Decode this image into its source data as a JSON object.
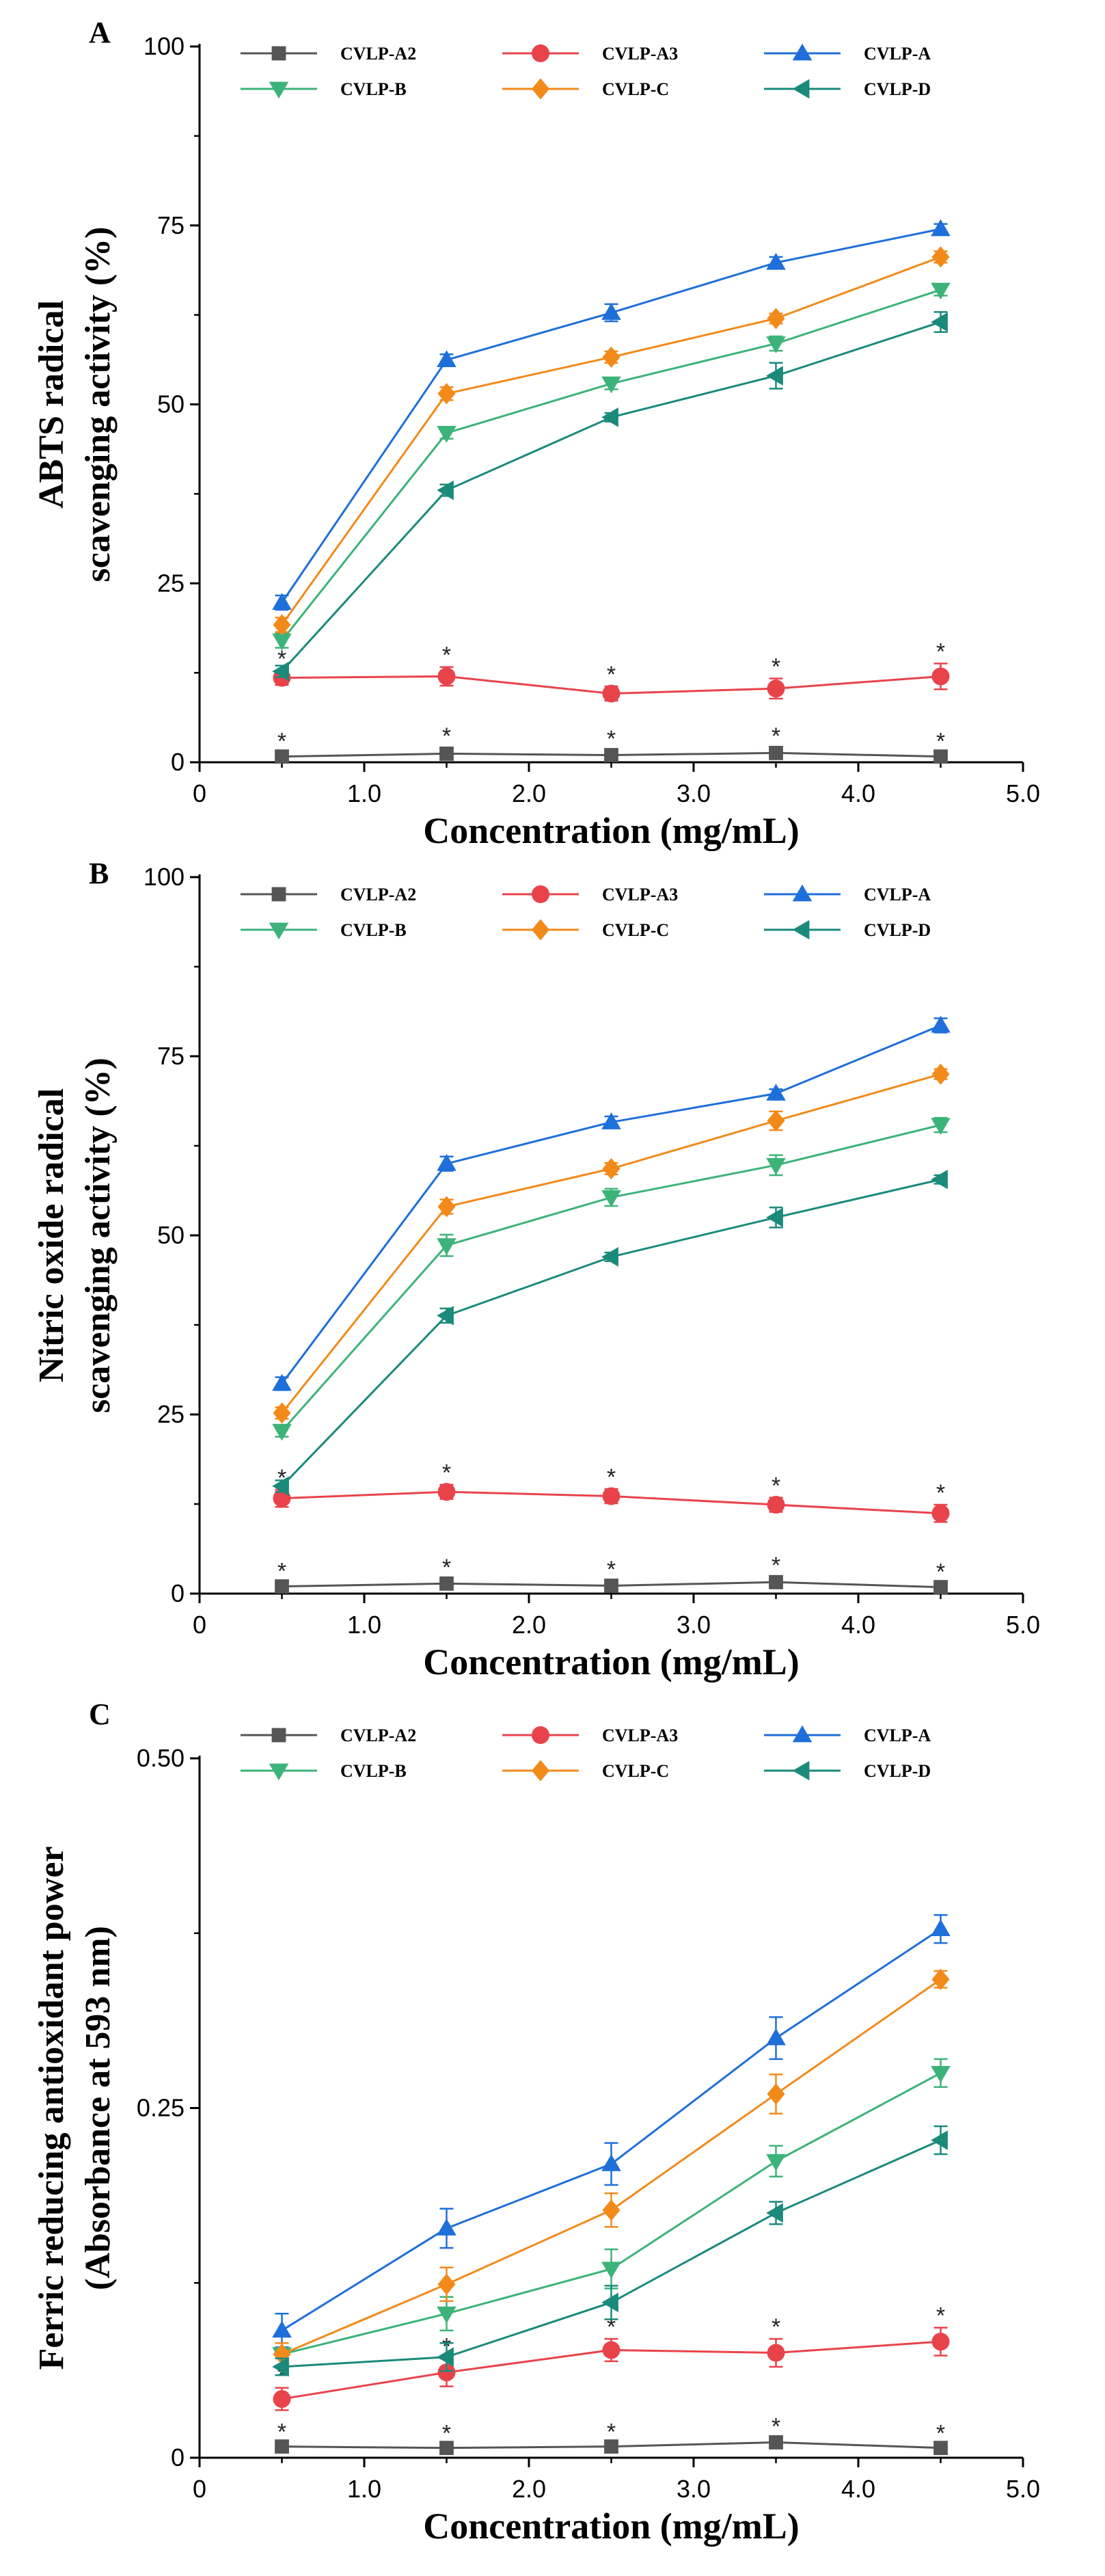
{
  "chart_data": [
    {
      "type": "line",
      "panel_label": "A",
      "title": "",
      "xlabel": "Concentration (mg/mL)",
      "ylabel_lines": [
        "ABTS radical",
        "scavenging activity (%)"
      ],
      "xlim": [
        0,
        5.0
      ],
      "ylim": [
        0,
        100
      ],
      "xticks": [
        "0",
        "1.0",
        "2.0",
        "3.0",
        "4.0",
        "5.0"
      ],
      "xtick_values": [
        0,
        1,
        2,
        3,
        4,
        5
      ],
      "yticks": [
        "0",
        "25",
        "50",
        "75",
        "100"
      ],
      "ytick_values": [
        0,
        25,
        50,
        75,
        100
      ],
      "legend_position": "top",
      "x": [
        0.5,
        1.5,
        2.5,
        3.5,
        4.5
      ],
      "series": [
        {
          "name": "CVLP-A2",
          "color": "#555555",
          "marker": "square",
          "values": [
            0.8,
            1.2,
            1.0,
            1.3,
            0.8
          ],
          "errors": [
            0.5,
            0.8,
            0.6,
            0.7,
            0.5
          ],
          "stars": [
            true,
            true,
            true,
            true,
            true
          ]
        },
        {
          "name": "CVLP-A3",
          "color": "#e8434b",
          "marker": "circle",
          "values": [
            11.8,
            12.0,
            9.6,
            10.3,
            12.0
          ],
          "errors": [
            1.0,
            1.3,
            1.0,
            1.4,
            1.8
          ],
          "stars": [
            true,
            true,
            true,
            true,
            true
          ]
        },
        {
          "name": "CVLP-A",
          "color": "#1e6fd9",
          "marker": "triangle-up",
          "values": [
            22.3,
            56.2,
            62.8,
            69.8,
            74.5
          ],
          "errors": [
            1.0,
            0.8,
            1.2,
            0.8,
            0.7
          ],
          "stars": [
            false,
            false,
            false,
            false,
            false
          ]
        },
        {
          "name": "CVLP-B",
          "color": "#3cb379",
          "marker": "triangle-down",
          "values": [
            17.0,
            46.0,
            52.9,
            58.5,
            66.0
          ],
          "errors": [
            1.0,
            0.8,
            0.8,
            1.0,
            0.8
          ],
          "stars": [
            false,
            false,
            false,
            false,
            false
          ]
        },
        {
          "name": "CVLP-C",
          "color": "#f28a1a",
          "marker": "diamond",
          "values": [
            19.2,
            51.5,
            56.6,
            62.0,
            70.6
          ],
          "errors": [
            1.0,
            0.9,
            0.8,
            0.7,
            0.8
          ],
          "stars": [
            false,
            false,
            false,
            false,
            false
          ]
        },
        {
          "name": "CVLP-D",
          "color": "#1a8a7a",
          "marker": "triangle-left",
          "values": [
            12.7,
            38.0,
            48.2,
            54.0,
            61.5
          ],
          "errors": [
            0.8,
            0.8,
            0.6,
            1.8,
            1.4
          ],
          "stars": [
            false,
            false,
            false,
            false,
            false
          ]
        }
      ]
    },
    {
      "type": "line",
      "panel_label": "B",
      "title": "",
      "xlabel": "Concentration (mg/mL)",
      "ylabel_lines": [
        "Nitric oxide radical",
        "scavenging activity (%)"
      ],
      "xlim": [
        0,
        5.0
      ],
      "ylim": [
        0,
        100
      ],
      "xticks": [
        "0",
        "1.0",
        "2.0",
        "3.0",
        "4.0",
        "5.0"
      ],
      "xtick_values": [
        0,
        1,
        2,
        3,
        4,
        5
      ],
      "yticks": [
        "0",
        "25",
        "50",
        "75",
        "100"
      ],
      "ytick_values": [
        0,
        25,
        50,
        75,
        100
      ],
      "legend_position": "top",
      "x": [
        0.5,
        1.5,
        2.5,
        3.5,
        4.5
      ],
      "series": [
        {
          "name": "CVLP-A2",
          "color": "#555555",
          "marker": "square",
          "values": [
            1.0,
            1.4,
            1.1,
            1.6,
            0.9
          ],
          "errors": [
            0.5,
            0.6,
            0.6,
            0.7,
            0.5
          ],
          "stars": [
            true,
            true,
            true,
            true,
            true
          ]
        },
        {
          "name": "CVLP-A3",
          "color": "#e8434b",
          "marker": "circle",
          "values": [
            13.3,
            14.2,
            13.6,
            12.4,
            11.2
          ],
          "errors": [
            1.2,
            1.0,
            1.0,
            1.0,
            1.2
          ],
          "stars": [
            true,
            true,
            true,
            true,
            true
          ]
        },
        {
          "name": "CVLP-A",
          "color": "#1e6fd9",
          "marker": "triangle-up",
          "values": [
            29.3,
            60.0,
            65.8,
            69.8,
            79.3
          ],
          "errors": [
            0.9,
            1.0,
            0.8,
            0.6,
            1.0
          ],
          "stars": [
            false,
            false,
            false,
            false,
            false
          ]
        },
        {
          "name": "CVLP-B",
          "color": "#3cb379",
          "marker": "triangle-down",
          "values": [
            22.7,
            48.6,
            55.3,
            59.8,
            65.4
          ],
          "errors": [
            0.8,
            1.5,
            1.2,
            1.4,
            1.0
          ],
          "stars": [
            false,
            false,
            false,
            false,
            false
          ]
        },
        {
          "name": "CVLP-C",
          "color": "#f28a1a",
          "marker": "diamond",
          "values": [
            25.2,
            54.0,
            59.3,
            66.0,
            72.5
          ],
          "errors": [
            0.8,
            1.0,
            0.8,
            1.3,
            0.7
          ],
          "stars": [
            false,
            false,
            false,
            false,
            false
          ]
        },
        {
          "name": "CVLP-D",
          "color": "#1a8a7a",
          "marker": "triangle-left",
          "values": [
            15.0,
            38.8,
            47.0,
            52.5,
            57.8
          ],
          "errors": [
            0.8,
            1.0,
            0.6,
            1.4,
            0.6
          ],
          "stars": [
            false,
            false,
            false,
            false,
            false
          ]
        }
      ]
    },
    {
      "type": "line",
      "panel_label": "C",
      "title": "",
      "xlabel": "Concentration (mg/mL)",
      "ylabel_lines": [
        "Ferric reducing antioxidant power",
        "(Absorbance at 593 nm)"
      ],
      "xlim": [
        0,
        5.0
      ],
      "ylim": [
        0,
        0.5
      ],
      "xticks": [
        "0",
        "1.0",
        "2.0",
        "3.0",
        "4.0",
        "5.0"
      ],
      "xtick_values": [
        0,
        1,
        2,
        3,
        4,
        5
      ],
      "yticks": [
        "0",
        "0.25",
        "0.50"
      ],
      "ytick_values": [
        0,
        0.25,
        0.5
      ],
      "legend_position": "top",
      "x": [
        0.5,
        1.5,
        2.5,
        3.5,
        4.5
      ],
      "series": [
        {
          "name": "CVLP-A2",
          "color": "#555555",
          "marker": "square",
          "values": [
            0.008,
            0.007,
            0.008,
            0.011,
            0.007
          ],
          "errors": [
            0.002,
            0.002,
            0.002,
            0.003,
            0.002
          ],
          "stars": [
            true,
            true,
            true,
            true,
            true
          ]
        },
        {
          "name": "CVLP-A3",
          "color": "#e8434b",
          "marker": "circle",
          "values": [
            0.042,
            0.061,
            0.077,
            0.075,
            0.083
          ],
          "errors": [
            0.008,
            0.01,
            0.008,
            0.01,
            0.01
          ],
          "stars": [
            true,
            true,
            true,
            true,
            true
          ]
        },
        {
          "name": "CVLP-A",
          "color": "#1e6fd9",
          "marker": "triangle-up",
          "values": [
            0.091,
            0.164,
            0.21,
            0.3,
            0.378
          ],
          "errors": [
            0.012,
            0.014,
            0.015,
            0.015,
            0.01
          ],
          "stars": [
            false,
            false,
            false,
            false,
            false
          ]
        },
        {
          "name": "CVLP-B",
          "color": "#3cb379",
          "marker": "triangle-down",
          "values": [
            0.074,
            0.103,
            0.135,
            0.212,
            0.275
          ],
          "errors": [
            0.008,
            0.012,
            0.014,
            0.011,
            0.01
          ],
          "stars": [
            false,
            false,
            false,
            false,
            false
          ]
        },
        {
          "name": "CVLP-C",
          "color": "#f28a1a",
          "marker": "diamond",
          "values": [
            0.074,
            0.124,
            0.177,
            0.26,
            0.342
          ],
          "errors": [
            0.008,
            0.012,
            0.012,
            0.014,
            0.006
          ],
          "stars": [
            false,
            false,
            false,
            false,
            false
          ]
        },
        {
          "name": "CVLP-D",
          "color": "#1a8a7a",
          "marker": "triangle-left",
          "values": [
            0.065,
            0.072,
            0.111,
            0.175,
            0.227
          ],
          "errors": [
            0.006,
            0.01,
            0.012,
            0.008,
            0.01
          ],
          "stars": [
            false,
            false,
            false,
            false,
            false
          ]
        }
      ]
    }
  ]
}
